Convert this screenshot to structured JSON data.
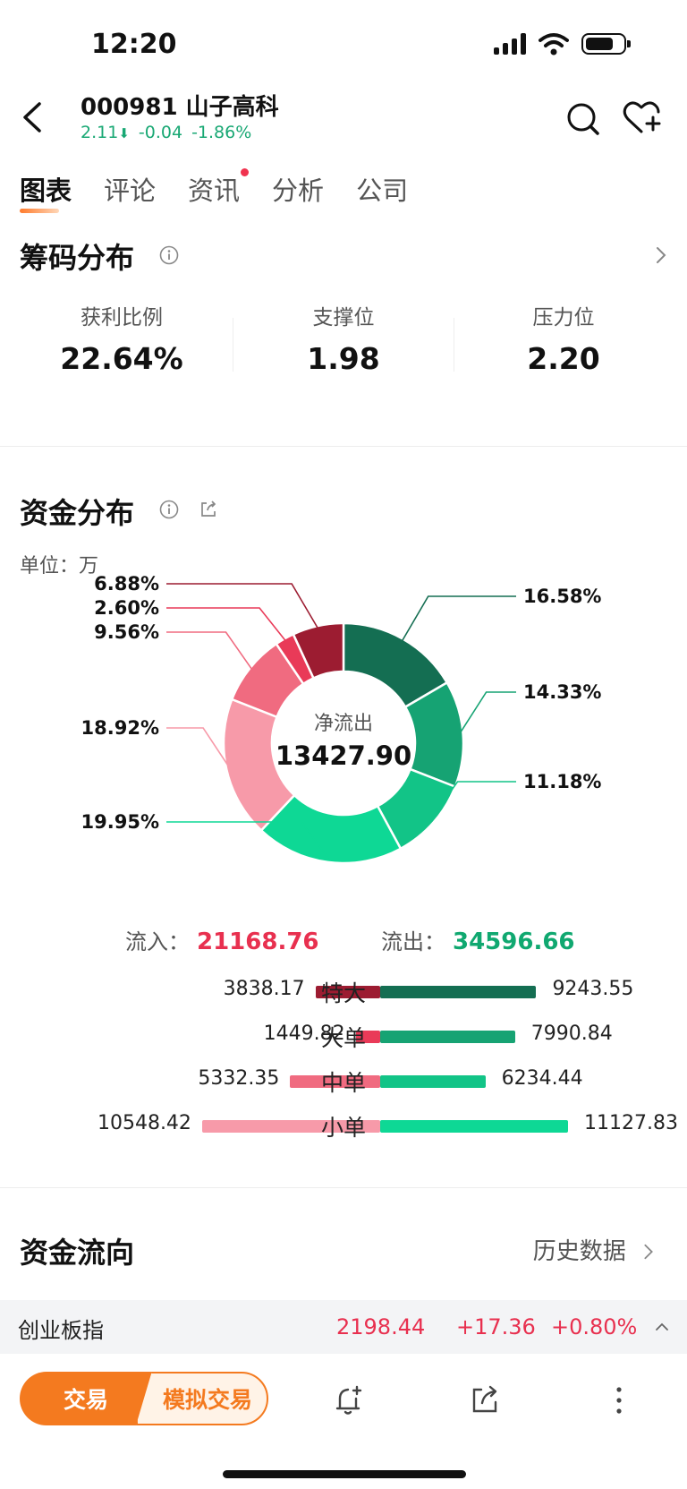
{
  "status_bar": {
    "time": "12:20"
  },
  "header": {
    "stock_title": "000981 山子高科",
    "price": "2.11",
    "arrow": "⬇",
    "change": "-0.04",
    "change_pct": "-1.86%"
  },
  "tabs": [
    {
      "label": "图表",
      "active": true
    },
    {
      "label": "评论"
    },
    {
      "label": "资讯",
      "badge": true
    },
    {
      "label": "分析"
    },
    {
      "label": "公司"
    }
  ],
  "chip_distribution": {
    "title": "筹码分布",
    "metrics": [
      {
        "label": "获利比例",
        "value": "22.64%"
      },
      {
        "label": "支撑位",
        "value": "1.98"
      },
      {
        "label": "压力位",
        "value": "2.20"
      }
    ]
  },
  "fund_distribution": {
    "title": "资金分布",
    "unit_label": "单位：万",
    "center_label": "净流出",
    "center_value": "13427.90",
    "inflow_label": "流入：",
    "inflow_value": "21168.76",
    "outflow_label": "流出：",
    "outflow_value": "34596.66",
    "colors": {
      "in_xl": "#9c1c31",
      "in_l": "#e93a58",
      "in_m": "#f06b80",
      "in_s": "#f79aa9",
      "out_xl": "#146e52",
      "out_l": "#16a373",
      "out_m": "#12c487",
      "out_s": "#0ed895"
    }
  },
  "chart_data": {
    "type": "pie",
    "slices": [
      {
        "name": "特大 流出",
        "value": 16.58,
        "label": "16.58%",
        "color": "#146e52"
      },
      {
        "name": "大单 流出",
        "value": 14.33,
        "label": "14.33%",
        "color": "#16a373"
      },
      {
        "name": "中单 流出",
        "value": 11.18,
        "label": "11.18%",
        "color": "#12c487"
      },
      {
        "name": "小单 流出",
        "value": 19.95,
        "label": "19.95%",
        "color": "#0ed895"
      },
      {
        "name": "小单 流入",
        "value": 18.92,
        "label": "18.92%",
        "color": "#f79aa9"
      },
      {
        "name": "中单 流入",
        "value": 9.56,
        "label": "9.56%",
        "color": "#f06b80"
      },
      {
        "name": "大单 流入",
        "value": 2.6,
        "label": "2.60%",
        "color": "#e93a58"
      },
      {
        "name": "特大 流入",
        "value": 6.88,
        "label": "6.88%",
        "color": "#9c1c31"
      }
    ],
    "bars": {
      "categories": [
        "特大",
        "大单",
        "中单",
        "小单"
      ],
      "inflow": [
        3838.17,
        1449.82,
        5332.35,
        10548.42
      ],
      "inflow_labels": [
        "3838.17",
        "1449.82",
        "5332.35",
        "10548.42"
      ],
      "outflow": [
        9243.55,
        7990.84,
        6234.44,
        11127.83
      ],
      "outflow_labels": [
        "9243.55",
        "7990.84",
        "6234.44",
        "11127.83"
      ]
    }
  },
  "fund_flow": {
    "title": "资金流向",
    "history_label": "历史数据"
  },
  "index_bar": {
    "name": "创业板指",
    "value": "2198.44",
    "change": "+17.36",
    "change_pct": "+0.80%"
  },
  "bottom_bar": {
    "trade_label": "交易",
    "sim_trade_label": "模拟交易"
  }
}
